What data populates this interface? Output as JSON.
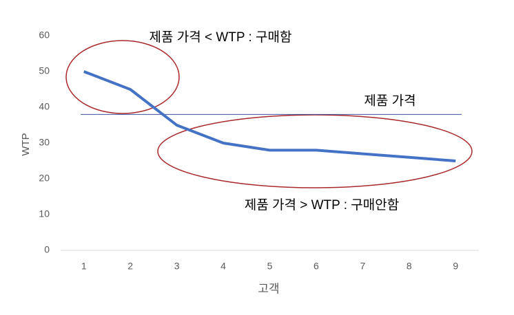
{
  "chart_data": {
    "type": "line",
    "x_label": "고객",
    "y_label": "WTP",
    "categories": [
      "1",
      "2",
      "3",
      "4",
      "5",
      "6",
      "7",
      "8",
      "9"
    ],
    "values": [
      50,
      45,
      35,
      30,
      28,
      28,
      27,
      26,
      25
    ],
    "color": "#4472c4",
    "ylim": [
      0,
      60
    ],
    "yticks": [
      0,
      10,
      20,
      30,
      40,
      50,
      60
    ],
    "grid": false,
    "reference_line": {
      "value": 38,
      "label": "제품 가격",
      "color": "#3c4f9e"
    },
    "annotations": [
      "제품 가격 < WTP : 구매함",
      "제품 가격 > WTP : 구매안함"
    ]
  }
}
